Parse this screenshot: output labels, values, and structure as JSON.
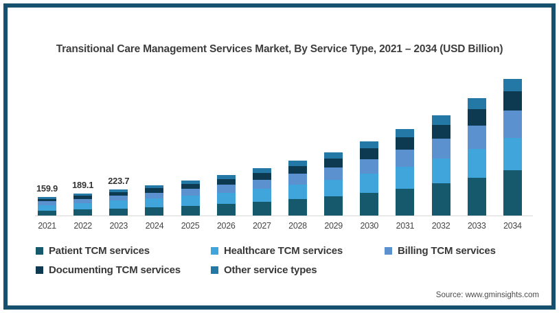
{
  "title": "Transitional Care Management Services Market, By Service Type, 2021 – 2034 (USD Billion)",
  "source": "Source: www.gminsights.com",
  "frame_border_color": "#15516f",
  "chart_data": {
    "type": "bar",
    "stacked": true,
    "title": "Transitional Care Management Services Market, By Service Type, 2021 – 2034 (USD Billion)",
    "xlabel": "",
    "ylabel": "USD Billion",
    "ylim": [
      0,
      1200
    ],
    "grid": false,
    "legend_position": "bottom",
    "categories": [
      "2021",
      "2022",
      "2023",
      "2024",
      "2025",
      "2026",
      "2027",
      "2028",
      "2029",
      "2030",
      "2031",
      "2032",
      "2033",
      "2034"
    ],
    "data_labels": [
      "159.9",
      "189.1",
      "223.7",
      "",
      "",
      "",
      "",
      "",
      "",
      "",
      "",
      "",
      "",
      ""
    ],
    "totals": [
      159.9,
      189.1,
      223.7,
      257.4,
      296.9,
      344.2,
      400.2,
      466.6,
      537.9,
      628.7,
      732.8,
      849.5,
      994.3,
      1158.7
    ],
    "series": [
      {
        "name": "Patient TCM services",
        "color": "#16596d",
        "values": [
          41.6,
          50.2,
          60.6,
          71.1,
          83.6,
          98.8,
          117.0,
          138.9,
          163.0,
          193.9,
          230.0,
          271.2,
          322.8,
          382.4
        ]
      },
      {
        "name": "Healthcare TCM services",
        "color": "#3fa5da",
        "values": [
          48.0,
          55.9,
          65.0,
          73.7,
          83.6,
          95.3,
          109.0,
          124.9,
          141.5,
          162.5,
          186.0,
          211.7,
          243.2,
          278.1
        ]
      },
      {
        "name": "Billing TCM services",
        "color": "#5b91cf",
        "values": [
          30.4,
          36.1,
          42.8,
          49.5,
          57.3,
          66.7,
          77.9,
          91.2,
          105.5,
          123.8,
          144.9,
          168.6,
          198.1,
          231.7
        ]
      },
      {
        "name": "Documenting TCM services",
        "color": "#0d3a50",
        "values": [
          22.4,
          26.5,
          31.3,
          36.0,
          41.6,
          48.2,
          56.0,
          65.3,
          75.3,
          88.0,
          102.6,
          118.9,
          139.2,
          162.2
        ]
      },
      {
        "name": "Other service types",
        "color": "#2478a6",
        "values": [
          17.6,
          20.5,
          23.9,
          27.1,
          30.8,
          35.2,
          40.3,
          46.3,
          52.6,
          60.5,
          69.3,
          79.1,
          91.0,
          104.3
        ]
      }
    ]
  }
}
